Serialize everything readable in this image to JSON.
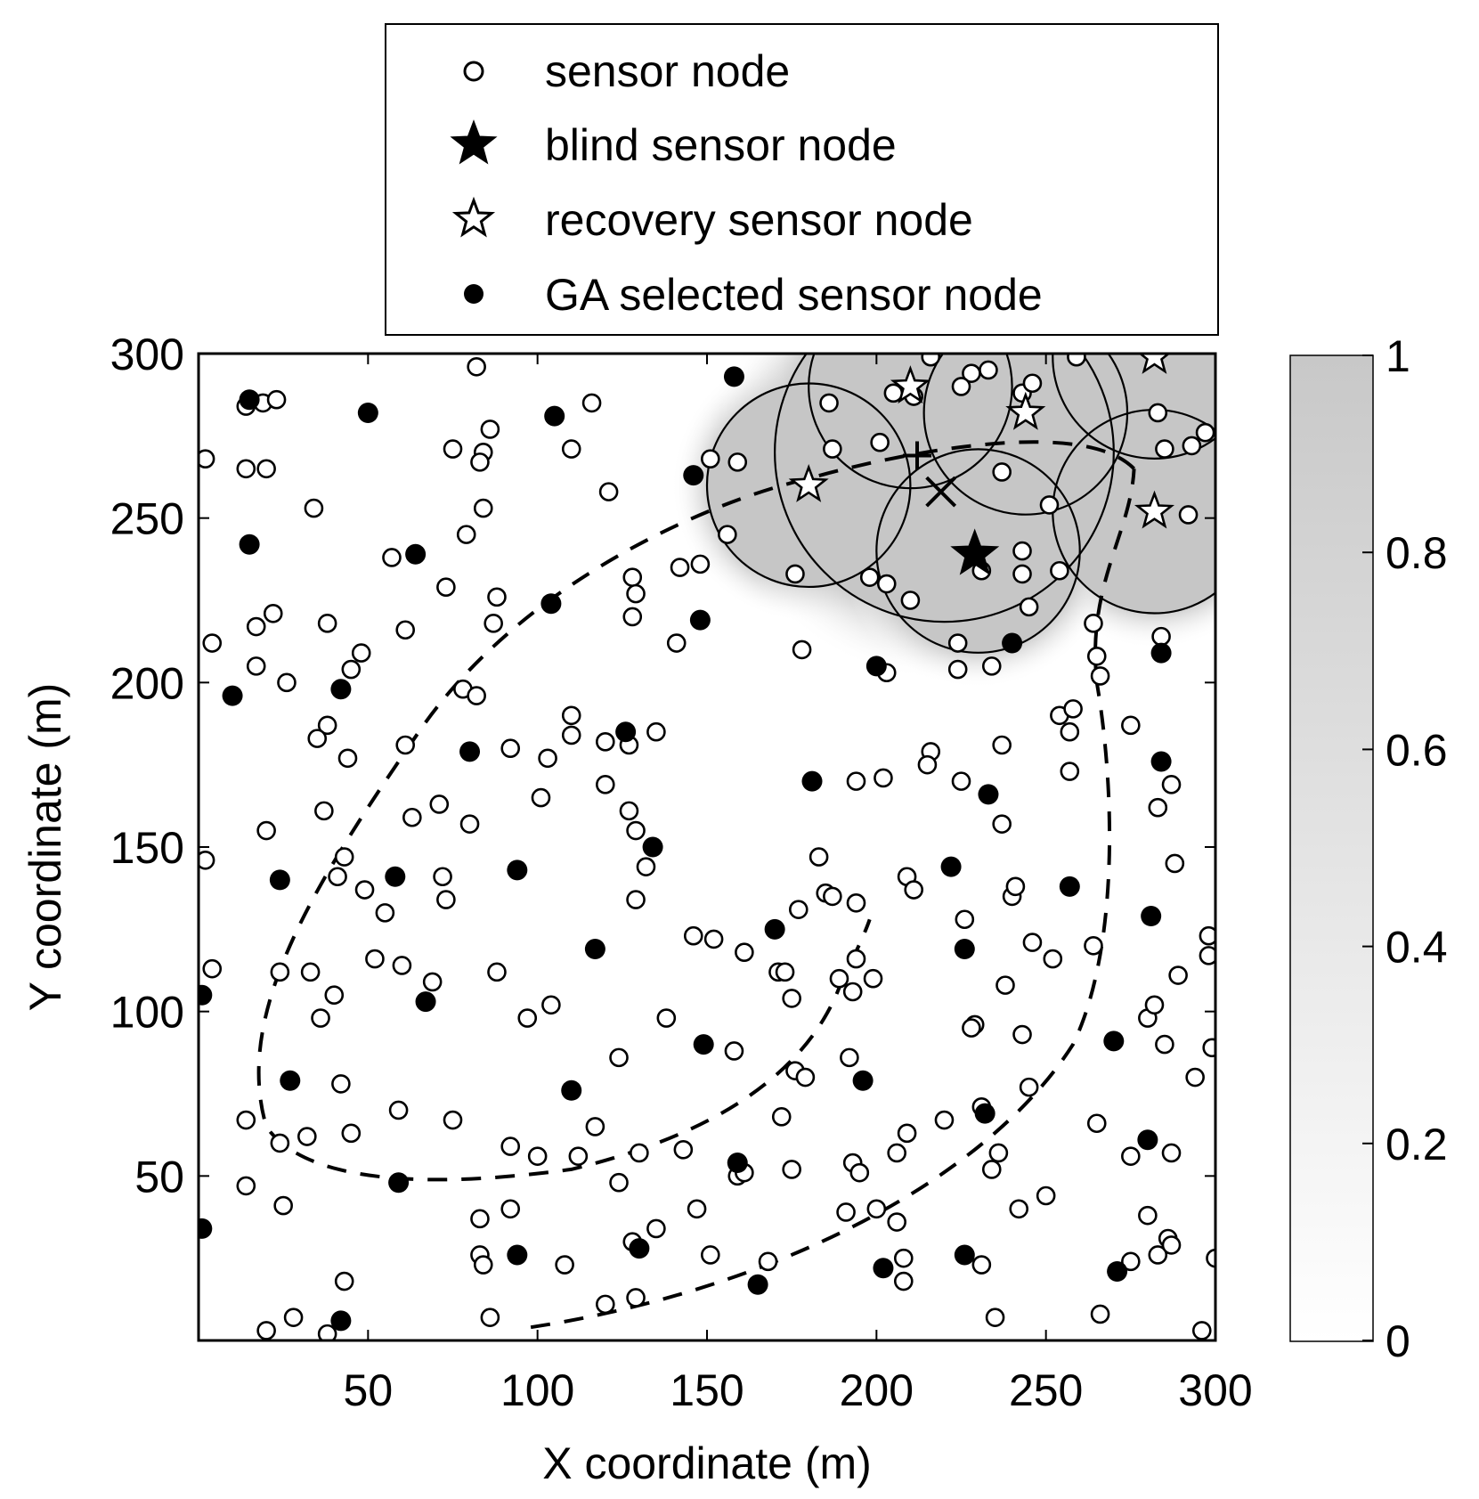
{
  "chart_data": {
    "type": "scatter",
    "xlabel": "X coordinate (m)",
    "ylabel": "Y coordinate (m)",
    "xlim": [
      0,
      300
    ],
    "ylim": [
      0,
      300
    ],
    "xticks": [
      50,
      100,
      150,
      200,
      250,
      300
    ],
    "yticks": [
      50,
      100,
      150,
      200,
      250,
      300
    ],
    "legend": [
      {
        "key": "sensor",
        "label": "sensor node"
      },
      {
        "key": "blind",
        "label": "blind sensor node"
      },
      {
        "key": "recovery",
        "label": "recovery sensor node"
      },
      {
        "key": "ga",
        "label": "GA selected sensor node"
      }
    ],
    "colorbar": {
      "range": [
        0,
        1
      ],
      "ticks": [
        "0",
        "0.2",
        "0.4",
        "0.6",
        "0.8",
        "1"
      ]
    },
    "blind_node": [
      229,
      239
    ],
    "recovery_nodes": [
      [
        180,
        260
      ],
      [
        210,
        290
      ],
      [
        244,
        282
      ],
      [
        282,
        299
      ],
      [
        282,
        252
      ]
    ],
    "coverage_circles": [
      {
        "cx": 180,
        "cy": 260,
        "r": 30
      },
      {
        "cx": 210,
        "cy": 290,
        "r": 30
      },
      {
        "cx": 244,
        "cy": 282,
        "r": 30
      },
      {
        "cx": 282,
        "cy": 299,
        "r": 30
      },
      {
        "cx": 282,
        "cy": 252,
        "r": 30
      },
      {
        "cx": 220,
        "cy": 270,
        "r": 50
      },
      {
        "cx": 230,
        "cy": 240,
        "r": 30
      }
    ],
    "path_markers": [
      {
        "type": "plus",
        "x": 212,
        "y": 269
      },
      {
        "type": "cross",
        "x": 219,
        "y": 258
      }
    ],
    "ga_selected": [
      [
        15,
        286
      ],
      [
        50,
        282
      ],
      [
        105,
        281
      ],
      [
        158,
        293
      ],
      [
        15,
        242
      ],
      [
        64,
        239
      ],
      [
        146,
        263
      ],
      [
        104,
        224
      ],
      [
        148,
        219
      ],
      [
        10,
        196
      ],
      [
        42,
        198
      ],
      [
        200,
        205
      ],
      [
        240,
        212
      ],
      [
        284,
        209
      ],
      [
        80,
        179
      ],
      [
        126,
        185
      ],
      [
        67,
        103
      ],
      [
        181,
        170
      ],
      [
        284,
        176
      ],
      [
        233,
        166
      ],
      [
        134,
        150
      ],
      [
        24,
        140
      ],
      [
        58,
        141
      ],
      [
        94,
        143
      ],
      [
        222,
        144
      ],
      [
        257,
        138
      ],
      [
        281,
        129
      ],
      [
        170,
        125
      ],
      [
        226,
        119
      ],
      [
        117,
        119
      ],
      [
        1,
        105
      ],
      [
        27,
        79
      ],
      [
        149,
        90
      ],
      [
        196,
        79
      ],
      [
        270,
        91
      ],
      [
        110,
        76
      ],
      [
        232,
        69
      ],
      [
        59,
        48
      ],
      [
        280,
        61
      ],
      [
        159,
        54
      ],
      [
        1,
        34
      ],
      [
        94,
        26
      ],
      [
        130,
        28
      ],
      [
        202,
        22
      ],
      [
        226,
        26
      ],
      [
        165,
        17
      ],
      [
        42,
        6
      ],
      [
        271,
        21
      ]
    ],
    "sensor_nodes": [
      [
        2,
        268
      ],
      [
        14,
        284
      ],
      [
        19,
        285
      ],
      [
        23,
        286
      ],
      [
        14,
        265
      ],
      [
        20,
        265
      ],
      [
        34,
        253
      ],
      [
        82,
        296
      ],
      [
        86,
        277
      ],
      [
        75,
        271
      ],
      [
        84,
        270
      ],
      [
        83,
        267
      ],
      [
        84,
        253
      ],
      [
        79,
        245
      ],
      [
        57,
        238
      ],
      [
        128,
        232
      ],
      [
        129,
        227
      ],
      [
        116,
        285
      ],
      [
        110,
        271
      ],
      [
        121,
        258
      ],
      [
        151,
        268
      ],
      [
        159,
        267
      ],
      [
        156,
        245
      ],
      [
        142,
        235
      ],
      [
        148,
        236
      ],
      [
        216,
        299
      ],
      [
        186,
        285
      ],
      [
        205,
        288
      ],
      [
        211,
        287
      ],
      [
        228,
        294
      ],
      [
        225,
        290
      ],
      [
        233,
        295
      ],
      [
        243,
        288
      ],
      [
        246,
        291
      ],
      [
        259,
        299
      ],
      [
        283,
        282
      ],
      [
        285,
        271
      ],
      [
        293,
        272
      ],
      [
        297,
        276
      ],
      [
        187,
        271
      ],
      [
        201,
        273
      ],
      [
        237,
        264
      ],
      [
        251,
        254
      ],
      [
        292,
        251
      ],
      [
        176,
        233
      ],
      [
        198,
        232
      ],
      [
        203,
        230
      ],
      [
        210,
        225
      ],
      [
        243,
        240
      ],
      [
        243,
        233
      ],
      [
        231,
        234
      ],
      [
        245,
        223
      ],
      [
        254,
        234
      ],
      [
        224,
        212
      ],
      [
        224,
        204
      ],
      [
        234,
        205
      ],
      [
        178,
        210
      ],
      [
        203,
        203
      ],
      [
        264,
        218
      ],
      [
        265,
        208
      ],
      [
        266,
        202
      ],
      [
        284,
        214
      ],
      [
        4,
        212
      ],
      [
        17,
        217
      ],
      [
        22,
        221
      ],
      [
        38,
        218
      ],
      [
        61,
        216
      ],
      [
        48,
        209
      ],
      [
        45,
        204
      ],
      [
        17,
        205
      ],
      [
        26,
        200
      ],
      [
        78,
        198
      ],
      [
        82,
        196
      ],
      [
        128,
        220
      ],
      [
        141,
        212
      ],
      [
        87,
        218
      ],
      [
        73,
        229
      ],
      [
        88,
        226
      ],
      [
        38,
        187
      ],
      [
        35,
        183
      ],
      [
        44,
        177
      ],
      [
        61,
        181
      ],
      [
        92,
        180
      ],
      [
        103,
        177
      ],
      [
        110,
        190
      ],
      [
        110,
        184
      ],
      [
        120,
        182
      ],
      [
        127,
        181
      ],
      [
        135,
        185
      ],
      [
        101,
        165
      ],
      [
        120,
        169
      ],
      [
        127,
        161
      ],
      [
        129,
        155
      ],
      [
        132,
        144
      ],
      [
        71,
        163
      ],
      [
        80,
        157
      ],
      [
        37,
        161
      ],
      [
        20,
        155
      ],
      [
        43,
        147
      ],
      [
        41,
        141
      ],
      [
        49,
        137
      ],
      [
        72,
        141
      ],
      [
        73,
        134
      ],
      [
        63,
        159
      ],
      [
        2,
        146
      ],
      [
        4,
        113
      ],
      [
        24,
        112
      ],
      [
        33,
        112
      ],
      [
        52,
        116
      ],
      [
        55,
        130
      ],
      [
        60,
        114
      ],
      [
        69,
        109
      ],
      [
        40,
        105
      ],
      [
        36,
        98
      ],
      [
        88,
        112
      ],
      [
        97,
        98
      ],
      [
        104,
        102
      ],
      [
        129,
        134
      ],
      [
        138,
        98
      ],
      [
        146,
        123
      ],
      [
        152,
        122
      ],
      [
        161,
        118
      ],
      [
        158,
        88
      ],
      [
        124,
        86
      ],
      [
        171,
        112
      ],
      [
        173,
        112
      ],
      [
        175,
        104
      ],
      [
        177,
        131
      ],
      [
        183,
        147
      ],
      [
        185,
        136
      ],
      [
        187,
        135
      ],
      [
        194,
        133
      ],
      [
        194,
        116
      ],
      [
        193,
        106
      ],
      [
        189,
        110
      ],
      [
        199,
        110
      ],
      [
        192,
        86
      ],
      [
        176,
        82
      ],
      [
        179,
        80
      ],
      [
        172,
        68
      ],
      [
        175,
        52
      ],
      [
        194,
        170
      ],
      [
        202,
        171
      ],
      [
        209,
        141
      ],
      [
        211,
        137
      ],
      [
        216,
        179
      ],
      [
        215,
        175
      ],
      [
        225,
        170
      ],
      [
        237,
        181
      ],
      [
        226,
        128
      ],
      [
        229,
        96
      ],
      [
        228,
        95
      ],
      [
        237,
        157
      ],
      [
        240,
        135
      ],
      [
        241,
        138
      ],
      [
        238,
        108
      ],
      [
        243,
        93
      ],
      [
        246,
        121
      ],
      [
        245,
        77
      ],
      [
        252,
        116
      ],
      [
        257,
        173
      ],
      [
        254,
        190
      ],
      [
        257,
        185
      ],
      [
        258,
        192
      ],
      [
        264,
        120
      ],
      [
        275,
        187
      ],
      [
        280,
        98
      ],
      [
        282,
        102
      ],
      [
        283,
        162
      ],
      [
        285,
        90
      ],
      [
        288,
        145
      ],
      [
        289,
        111
      ],
      [
        287,
        169
      ],
      [
        298,
        123
      ],
      [
        298,
        117
      ],
      [
        299,
        89
      ],
      [
        294,
        80
      ],
      [
        296,
        3
      ],
      [
        300,
        25
      ],
      [
        14,
        67
      ],
      [
        14,
        47
      ],
      [
        24,
        60
      ],
      [
        25,
        41
      ],
      [
        32,
        62
      ],
      [
        42,
        78
      ],
      [
        45,
        63
      ],
      [
        59,
        70
      ],
      [
        75,
        67
      ],
      [
        83,
        26
      ],
      [
        84,
        23
      ],
      [
        83,
        37
      ],
      [
        92,
        59
      ],
      [
        92,
        40
      ],
      [
        100,
        56
      ],
      [
        108,
        23
      ],
      [
        112,
        56
      ],
      [
        117,
        65
      ],
      [
        124,
        48
      ],
      [
        130,
        57
      ],
      [
        128,
        30
      ],
      [
        120,
        11
      ],
      [
        129,
        13
      ],
      [
        135,
        34
      ],
      [
        143,
        58
      ],
      [
        147,
        40
      ],
      [
        151,
        26
      ],
      [
        159,
        50
      ],
      [
        161,
        51
      ],
      [
        168,
        24
      ],
      [
        191,
        39
      ],
      [
        193,
        54
      ],
      [
        195,
        51
      ],
      [
        200,
        40
      ],
      [
        206,
        57
      ],
      [
        209,
        63
      ],
      [
        206,
        36
      ],
      [
        208,
        25
      ],
      [
        208,
        18
      ],
      [
        220,
        67
      ],
      [
        231,
        23
      ],
      [
        231,
        71
      ],
      [
        234,
        52
      ],
      [
        236,
        57
      ],
      [
        242,
        40
      ],
      [
        250,
        44
      ],
      [
        265,
        66
      ],
      [
        266,
        8
      ],
      [
        275,
        24
      ],
      [
        275,
        56
      ],
      [
        280,
        38
      ],
      [
        283,
        26
      ],
      [
        286,
        31
      ],
      [
        287,
        29
      ],
      [
        287,
        57
      ],
      [
        20,
        3
      ],
      [
        28,
        7
      ],
      [
        38,
        2
      ],
      [
        43,
        18
      ],
      [
        86,
        7
      ],
      [
        235,
        7
      ]
    ],
    "dashed_curves": [
      "M 98 4 C 168 15, 232 48, 258 90 C 272 120, 270 170, 265 200",
      "M 265 200 C 262 230, 275 245, 276 265",
      "M 276 265 C 260 282, 200 268, 180 262 C 150 255, 95 230, 65 185 C 35 140, 10 100, 20 65 C 30 50, 60 45, 110 52 C 150 62, 180 80, 190 110 C 195 120, 197 125, 198 128"
    ]
  }
}
